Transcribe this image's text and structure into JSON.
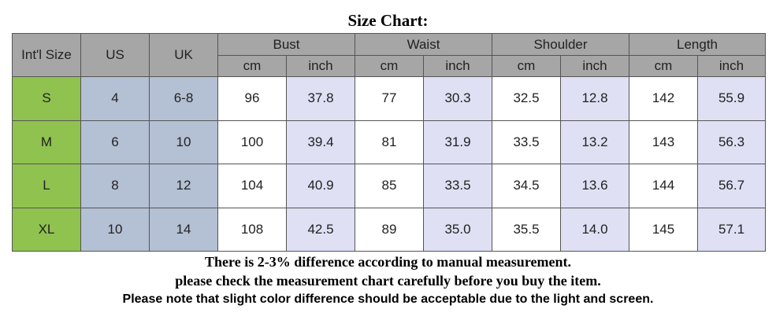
{
  "title": "Size Chart:",
  "table": {
    "header": {
      "size": "Int'l Size",
      "us": "US",
      "uk": "UK",
      "groups": [
        {
          "label": "Bust",
          "units": [
            "cm",
            "inch"
          ]
        },
        {
          "label": "Waist",
          "units": [
            "cm",
            "inch"
          ]
        },
        {
          "label": "Shoulder",
          "units": [
            "cm",
            "inch"
          ]
        },
        {
          "label": "Length",
          "units": [
            "cm",
            "inch"
          ]
        }
      ]
    },
    "rows": [
      [
        "S",
        "4",
        "6-8",
        "96",
        "37.8",
        "77",
        "30.3",
        "32.5",
        "12.8",
        "142",
        "55.9"
      ],
      [
        "M",
        "6",
        "10",
        "100",
        "39.4",
        "81",
        "31.9",
        "33.5",
        "13.2",
        "143",
        "56.3"
      ],
      [
        "L",
        "8",
        "12",
        "104",
        "40.9",
        "85",
        "33.5",
        "34.5",
        "13.6",
        "144",
        "56.7"
      ],
      [
        "XL",
        "10",
        "14",
        "108",
        "42.5",
        "89",
        "35.0",
        "35.5",
        "14.0",
        "145",
        "57.1"
      ]
    ]
  },
  "notes": [
    "There is 2-3% difference according to manual measurement.",
    "please check the measurement chart carefully before you buy the item.",
    "Please note that slight color difference should be acceptable due to the light and screen."
  ]
}
